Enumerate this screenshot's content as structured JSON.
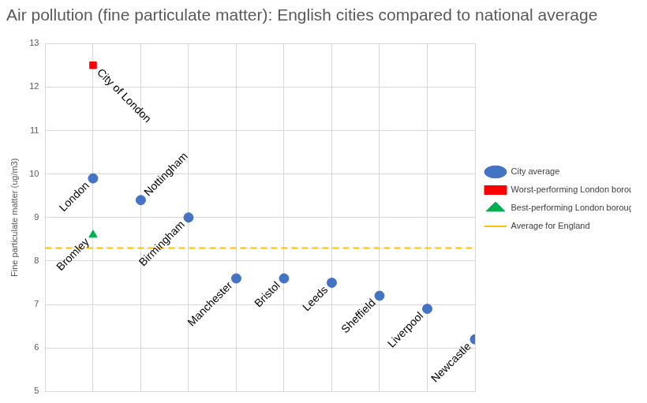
{
  "chart_data": {
    "type": "scatter",
    "title": "Air pollution (fine particulate matter): English cities compared to national average",
    "y_label": "Fine particulate matter (ug/m3)",
    "xlim": [
      0,
      9
    ],
    "xticks": [
      0,
      1,
      2,
      3,
      4,
      5,
      6,
      7,
      8,
      9
    ],
    "ylim": [
      5,
      13
    ],
    "yticks": [
      5,
      6,
      7,
      8,
      9,
      10,
      11,
      12,
      13
    ],
    "grid": true,
    "legend": "right",
    "tick_labels": "y",
    "series": [
      {
        "name": "City average",
        "color": "#4472c4",
        "marker": "circle",
        "x": [
          1,
          2,
          3,
          4,
          5,
          6,
          7,
          8,
          9
        ],
        "values": [
          9.9,
          9.4,
          9.0,
          7.6,
          7.6,
          7.5,
          7.2,
          6.9,
          6.2
        ],
        "point_labels": [
          "London",
          "Nottingham",
          "Birmingham",
          "Manchester",
          "Bristol",
          "Leeds",
          "Sheffield",
          "Liverpool",
          "Newcastle"
        ]
      },
      {
        "name": "Worst-performing London borough",
        "color": "#ff0000",
        "marker": "square",
        "x": [
          1
        ],
        "values": [
          12.5
        ],
        "point_labels": [
          "City of London"
        ]
      },
      {
        "name": "Best-performing London borough",
        "color": "#00b050",
        "marker": "triangle",
        "x": [
          1
        ],
        "values": [
          8.6
        ],
        "point_labels": [
          "Bromley"
        ]
      }
    ],
    "reference_lines": [
      {
        "name": "Average for England",
        "value": 8.3,
        "color": "#ffc000",
        "line_style": "dashed"
      }
    ]
  }
}
